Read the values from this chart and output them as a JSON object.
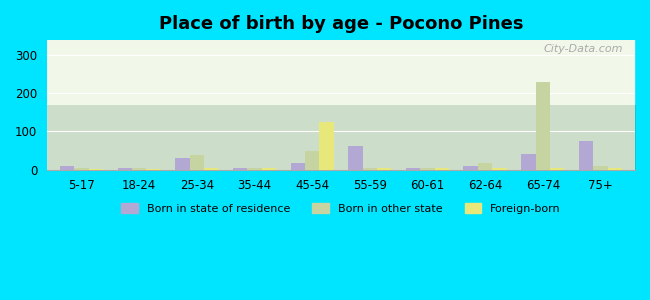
{
  "title": "Place of birth by age - Pocono Pines",
  "categories": [
    "5-17",
    "18-24",
    "25-34",
    "35-44",
    "45-54",
    "55-59",
    "60-61",
    "62-64",
    "65-74",
    "75+"
  ],
  "born_in_state": [
    10,
    3,
    30,
    3,
    18,
    62,
    3,
    8,
    42,
    75
  ],
  "born_other_state": [
    5,
    3,
    37,
    5,
    50,
    5,
    3,
    18,
    230,
    10
  ],
  "foreign_born": [
    2,
    2,
    3,
    3,
    125,
    3,
    3,
    3,
    5,
    5
  ],
  "color_state": "#b3a8d4",
  "color_other": "#c5d4a0",
  "color_foreign": "#e8e87a",
  "ylim": [
    0,
    340
  ],
  "yticks": [
    0,
    100,
    200,
    300
  ],
  "background_top": "#d4ecd4",
  "background_bottom": "#f0f8e8",
  "outer_bg": "#00e5ff",
  "bar_width": 0.25
}
